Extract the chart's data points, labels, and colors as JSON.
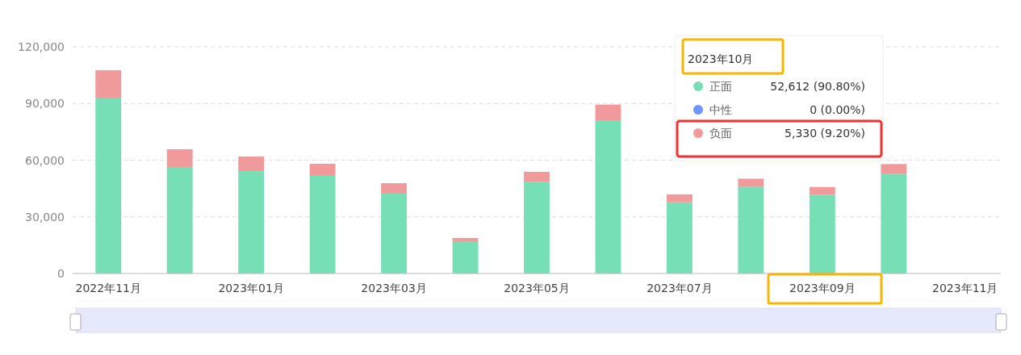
{
  "chart_data": {
    "type": "bar",
    "stacked": true,
    "categories": [
      "2022年11月",
      null,
      "2023年01月",
      null,
      "2023年03月",
      null,
      "2023年05月",
      null,
      "2023年07月",
      null,
      "2023年09月",
      null,
      "2023年11月"
    ],
    "series": [
      {
        "name": "正面",
        "color": "#76dfb5",
        "values": [
          92700,
          56400,
          54200,
          51700,
          42300,
          17100,
          48600,
          81100,
          37700,
          45800,
          41600,
          52612,
          null
        ]
      },
      {
        "name": "中性",
        "color": "#6e95f7",
        "values": [
          0,
          0,
          0,
          0,
          0,
          0,
          0,
          0,
          0,
          0,
          0,
          0,
          0
        ]
      },
      {
        "name": "负面",
        "color": "#f19a9b",
        "values": [
          14900,
          9400,
          7700,
          6400,
          5500,
          1700,
          5200,
          8300,
          4200,
          4400,
          4200,
          5330,
          0
        ]
      }
    ],
    "ylim": [
      0,
      120000
    ],
    "yticks": [
      {
        "value": 0,
        "label": "0"
      },
      {
        "value": 30000,
        "label": "30,000"
      },
      {
        "value": 60000,
        "label": "60,000"
      },
      {
        "value": 90000,
        "label": "90,000"
      },
      {
        "value": 120000,
        "label": "120,000"
      }
    ],
    "grid": "y",
    "legend": "top right",
    "annotations": [
      "2023年10月",
      "52,612 (90.80%)",
      "0 (0.00%)",
      "5,330 (9.20%)"
    ]
  }
}
